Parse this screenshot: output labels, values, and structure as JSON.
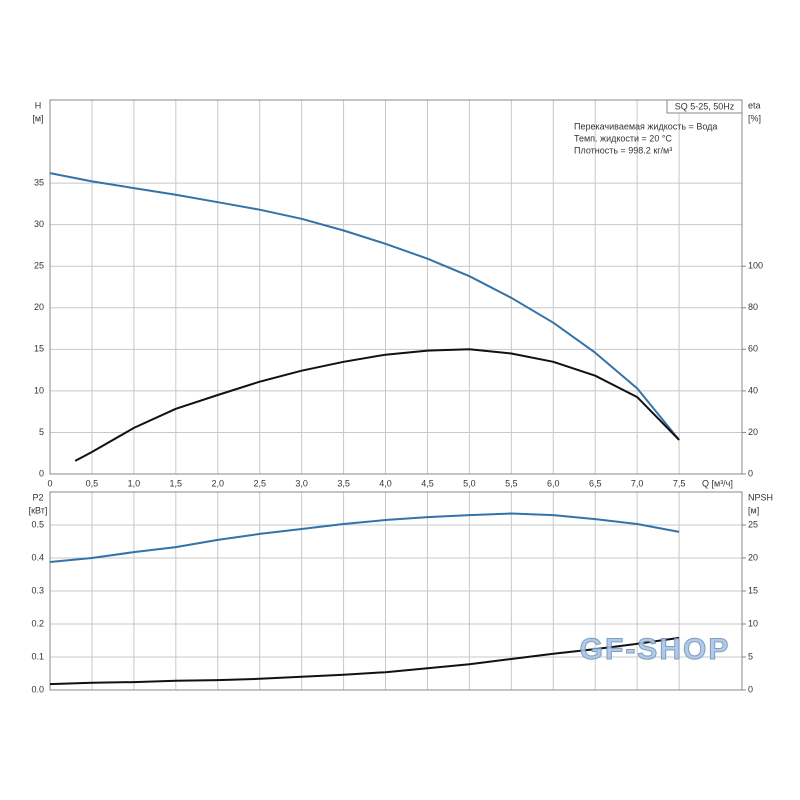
{
  "chart_data": [
    {
      "type": "line",
      "title": "SQ 5-25, 50Hz",
      "annotations": [
        "Перекачиваемая жидкость = Вода",
        "Темп. жидкости = 20 °C",
        "Плотность = 998.2 кг/м³"
      ],
      "ylabel": "H",
      "yunit": "[м]",
      "y2label": "eta",
      "y2unit": "[%]",
      "xlabel": "Q [м³/ч]",
      "xlim": [
        0,
        8.25
      ],
      "xticks": [
        0,
        {
          "value": 0.5,
          "label": "0,5"
        },
        {
          "value": 1,
          "label": "1,0"
        },
        {
          "value": 1.5,
          "label": "1,5"
        },
        {
          "value": 2,
          "label": "2,0"
        },
        {
          "value": 2.5,
          "label": "2,5"
        },
        {
          "value": 3,
          "label": "3,0"
        },
        {
          "value": 3.5,
          "label": "3,5"
        },
        {
          "value": 4,
          "label": "4,0"
        },
        {
          "value": 4.5,
          "label": "4,5"
        },
        {
          "value": 5,
          "label": "5,0"
        },
        {
          "value": 5.5,
          "label": "5,5"
        },
        {
          "value": 6,
          "label": "6,0"
        },
        {
          "value": 6.5,
          "label": "6,5"
        },
        {
          "value": 7,
          "label": "7,0"
        },
        {
          "value": 7.5,
          "label": "7,5"
        }
      ],
      "ylim": [
        0,
        45
      ],
      "yticks": [
        0,
        5,
        10,
        15,
        20,
        25,
        30,
        35
      ],
      "y2lim": [
        0,
        180
      ],
      "y2ticks": [
        0,
        20,
        40,
        60,
        80,
        100
      ],
      "grid": true,
      "series": [
        {
          "color": "#3373a8",
          "x": [
            0,
            0.5,
            1,
            1.5,
            2,
            2.5,
            3,
            3.5,
            4,
            4.5,
            5,
            5.5,
            6,
            6.5,
            7,
            7.5
          ],
          "values": [
            36.2,
            35.2,
            34.4,
            33.6,
            32.7,
            31.8,
            30.7,
            29.3,
            27.7,
            25.9,
            23.8,
            21.2,
            18.2,
            14.6,
            10.3,
            4.1
          ]
        },
        {
          "color": "#111111",
          "axis": "y2",
          "x": [
            0.3,
            0.5,
            1,
            1.5,
            2,
            2.5,
            3,
            3.5,
            4,
            4.5,
            5,
            5.5,
            6,
            6.5,
            7,
            7.5
          ],
          "values": [
            6.3,
            10.6,
            22.2,
            31.4,
            38,
            44.4,
            49.7,
            54,
            57.4,
            59.4,
            60,
            58,
            54,
            47.3,
            37,
            16.4
          ]
        }
      ]
    },
    {
      "type": "line",
      "ylabel": "P2",
      "yunit": "[кВт]",
      "y2label": "NPSH",
      "y2unit": "[м]",
      "xlim": [
        0,
        8.25
      ],
      "ylim": [
        0,
        0.6
      ],
      "yticks": [
        {
          "value": 0,
          "label": "0.0"
        },
        0.1,
        0.2,
        0.3,
        0.4,
        0.5
      ],
      "y2lim": [
        0,
        30
      ],
      "y2ticks": [
        0,
        5,
        10,
        15,
        20,
        25
      ],
      "grid": true,
      "series": [
        {
          "color": "#3373a8",
          "x": [
            0,
            0.5,
            1,
            1.5,
            2,
            2.5,
            3,
            3.5,
            4,
            4.5,
            5,
            5.5,
            6,
            6.5,
            7,
            7.5
          ],
          "values": [
            0.388,
            0.4,
            0.418,
            0.433,
            0.455,
            0.473,
            0.488,
            0.503,
            0.515,
            0.524,
            0.53,
            0.535,
            0.53,
            0.518,
            0.503,
            0.479
          ]
        },
        {
          "color": "#111111",
          "axis": "y2",
          "x": [
            0,
            0.5,
            1,
            1.5,
            2,
            2.5,
            3,
            3.5,
            4,
            4.5,
            5,
            5.5,
            6,
            6.5,
            7,
            7.5
          ],
          "values": [
            0.9,
            1.1,
            1.2,
            1.4,
            1.5,
            1.7,
            2,
            2.3,
            2.7,
            3.3,
            3.9,
            4.7,
            5.5,
            6.2,
            7,
            7.9
          ]
        }
      ]
    }
  ],
  "watermark": "GF-SHOP"
}
